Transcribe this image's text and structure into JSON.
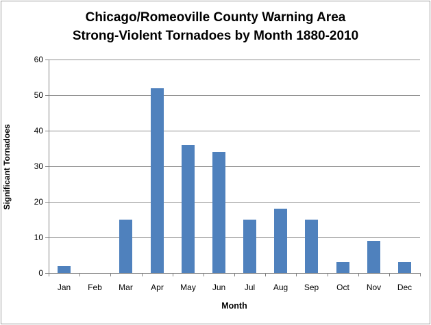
{
  "window": {
    "background": "#FFFFFF",
    "border_color": "#9A9A9A"
  },
  "chart_data": {
    "type": "bar",
    "title": "Chicago/Romeoville County Warning Area",
    "subtitle": "Strong-Violent Tornadoes by Month 1880-2010",
    "categories": [
      "Jan",
      "Feb",
      "Mar",
      "Apr",
      "May",
      "Jun",
      "Jul",
      "Aug",
      "Sep",
      "Oct",
      "Nov",
      "Dec"
    ],
    "values": [
      2,
      0,
      15,
      52,
      36,
      34,
      15,
      18,
      15,
      3,
      9,
      3
    ],
    "xlabel": "Month",
    "ylabel": "Significant Tornadoes",
    "ylim": [
      0,
      60
    ],
    "yticks": [
      0,
      10,
      20,
      30,
      40,
      50,
      60
    ],
    "grid": "horizontal",
    "legend": "none",
    "bar_color": "#4F81BD",
    "gridline_color": "#8C8C8C",
    "axis_color": "#808080",
    "text_color": "#000000"
  }
}
